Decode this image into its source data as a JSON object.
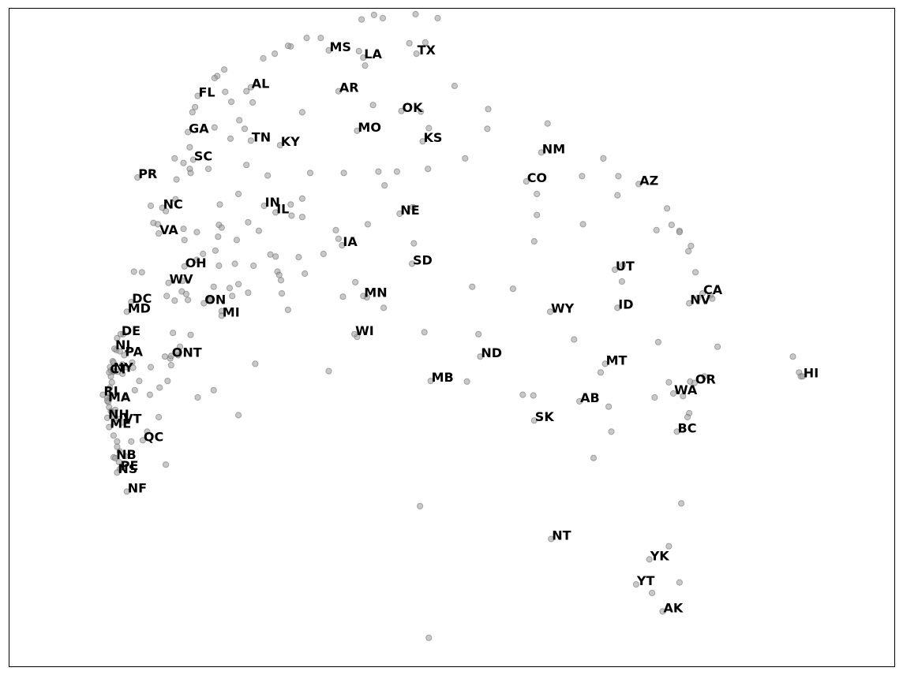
{
  "chart_data": {
    "type": "scatter",
    "title": "",
    "xlabel": "",
    "ylabel": "",
    "xlim": [
      0,
      1
    ],
    "ylim": [
      0,
      1
    ],
    "axes_ticks": false,
    "grid": false,
    "marker_color": "#9a9a9a",
    "label_color": "#000000",
    "labeled_points": [
      {
        "label": "MS",
        "x": 0.361,
        "y": 0.936
      },
      {
        "label": "LA",
        "x": 0.4,
        "y": 0.925
      },
      {
        "label": "TX",
        "x": 0.46,
        "y": 0.931
      },
      {
        "label": "FL",
        "x": 0.213,
        "y": 0.867
      },
      {
        "label": "AL",
        "x": 0.273,
        "y": 0.88
      },
      {
        "label": "AR",
        "x": 0.372,
        "y": 0.874
      },
      {
        "label": "OK",
        "x": 0.443,
        "y": 0.844
      },
      {
        "label": "GA",
        "x": 0.202,
        "y": 0.812
      },
      {
        "label": "MO",
        "x": 0.393,
        "y": 0.814
      },
      {
        "label": "TN",
        "x": 0.273,
        "y": 0.799
      },
      {
        "label": "KY",
        "x": 0.306,
        "y": 0.792
      },
      {
        "label": "KS",
        "x": 0.467,
        "y": 0.798
      },
      {
        "label": "SC",
        "x": 0.208,
        "y": 0.77
      },
      {
        "label": "NM",
        "x": 0.601,
        "y": 0.781
      },
      {
        "label": "PR",
        "x": 0.145,
        "y": 0.743
      },
      {
        "label": "CO",
        "x": 0.584,
        "y": 0.737
      },
      {
        "label": "AZ",
        "x": 0.711,
        "y": 0.733
      },
      {
        "label": "NC",
        "x": 0.173,
        "y": 0.697
      },
      {
        "label": "IN",
        "x": 0.288,
        "y": 0.7
      },
      {
        "label": "IL",
        "x": 0.301,
        "y": 0.69
      },
      {
        "label": "NE",
        "x": 0.441,
        "y": 0.688
      },
      {
        "label": "VA",
        "x": 0.169,
        "y": 0.658
      },
      {
        "label": "IA",
        "x": 0.376,
        "y": 0.64
      },
      {
        "label": "SD",
        "x": 0.455,
        "y": 0.612
      },
      {
        "label": "OH",
        "x": 0.198,
        "y": 0.608
      },
      {
        "label": "UT",
        "x": 0.684,
        "y": 0.603
      },
      {
        "label": "WV",
        "x": 0.18,
        "y": 0.583
      },
      {
        "label": "MN",
        "x": 0.4,
        "y": 0.563
      },
      {
        "label": "CA",
        "x": 0.783,
        "y": 0.567
      },
      {
        "label": "NV",
        "x": 0.768,
        "y": 0.552
      },
      {
        "label": "DC",
        "x": 0.138,
        "y": 0.554
      },
      {
        "label": "ON",
        "x": 0.22,
        "y": 0.552
      },
      {
        "label": "ID",
        "x": 0.687,
        "y": 0.545
      },
      {
        "label": "MD",
        "x": 0.133,
        "y": 0.539
      },
      {
        "label": "WY",
        "x": 0.611,
        "y": 0.539
      },
      {
        "label": "MI",
        "x": 0.24,
        "y": 0.533
      },
      {
        "label": "DE",
        "x": 0.126,
        "y": 0.505
      },
      {
        "label": "WI",
        "x": 0.39,
        "y": 0.505
      },
      {
        "label": "NJ",
        "x": 0.119,
        "y": 0.483
      },
      {
        "label": "ONT",
        "x": 0.183,
        "y": 0.472
      },
      {
        "label": "PA",
        "x": 0.13,
        "y": 0.473
      },
      {
        "label": "ND",
        "x": 0.532,
        "y": 0.471
      },
      {
        "label": "MT",
        "x": 0.673,
        "y": 0.46
      },
      {
        "label": "NY",
        "x": 0.117,
        "y": 0.449
      },
      {
        "label": "CT",
        "x": 0.113,
        "y": 0.447
      },
      {
        "label": "HI",
        "x": 0.896,
        "y": 0.441
      },
      {
        "label": "MB",
        "x": 0.476,
        "y": 0.434
      },
      {
        "label": "OR",
        "x": 0.774,
        "y": 0.431
      },
      {
        "label": "WA",
        "x": 0.75,
        "y": 0.415
      },
      {
        "label": "RI",
        "x": 0.106,
        "y": 0.413
      },
      {
        "label": "MA",
        "x": 0.111,
        "y": 0.404
      },
      {
        "label": "AB",
        "x": 0.644,
        "y": 0.403
      },
      {
        "label": "SK",
        "x": 0.593,
        "y": 0.374
      },
      {
        "label": "NH",
        "x": 0.111,
        "y": 0.378
      },
      {
        "label": "VT",
        "x": 0.128,
        "y": 0.371
      },
      {
        "label": "ME",
        "x": 0.113,
        "y": 0.364
      },
      {
        "label": "BC",
        "x": 0.754,
        "y": 0.357
      },
      {
        "label": "QC",
        "x": 0.151,
        "y": 0.344
      },
      {
        "label": "NB",
        "x": 0.12,
        "y": 0.317
      },
      {
        "label": "PE",
        "x": 0.125,
        "y": 0.3
      },
      {
        "label": "NS",
        "x": 0.122,
        "y": 0.295
      },
      {
        "label": "NF",
        "x": 0.133,
        "y": 0.266
      },
      {
        "label": "NT",
        "x": 0.612,
        "y": 0.194
      },
      {
        "label": "YK",
        "x": 0.723,
        "y": 0.163
      },
      {
        "label": "YT",
        "x": 0.708,
        "y": 0.125
      },
      {
        "label": "AK",
        "x": 0.738,
        "y": 0.084
      }
    ],
    "unlabeled_points": [
      [
        0.398,
        0.983
      ],
      [
        0.412,
        0.99
      ],
      [
        0.422,
        0.985
      ],
      [
        0.459,
        0.991
      ],
      [
        0.484,
        0.985
      ],
      [
        0.47,
        0.948
      ],
      [
        0.452,
        0.947
      ],
      [
        0.402,
        0.913
      ],
      [
        0.395,
        0.935
      ],
      [
        0.352,
        0.955
      ],
      [
        0.336,
        0.955
      ],
      [
        0.318,
        0.942
      ],
      [
        0.315,
        0.943
      ],
      [
        0.3,
        0.931
      ],
      [
        0.287,
        0.924
      ],
      [
        0.243,
        0.907
      ],
      [
        0.235,
        0.897
      ],
      [
        0.232,
        0.894
      ],
      [
        0.244,
        0.873
      ],
      [
        0.268,
        0.874
      ],
      [
        0.251,
        0.858
      ],
      [
        0.275,
        0.857
      ],
      [
        0.21,
        0.85
      ],
      [
        0.207,
        0.842
      ],
      [
        0.331,
        0.842
      ],
      [
        0.411,
        0.853
      ],
      [
        0.465,
        0.843
      ],
      [
        0.503,
        0.882
      ],
      [
        0.541,
        0.847
      ],
      [
        0.608,
        0.825
      ],
      [
        0.54,
        0.817
      ],
      [
        0.474,
        0.818
      ],
      [
        0.26,
        0.83
      ],
      [
        0.232,
        0.819
      ],
      [
        0.266,
        0.817
      ],
      [
        0.25,
        0.802
      ],
      [
        0.204,
        0.789
      ],
      [
        0.515,
        0.772
      ],
      [
        0.671,
        0.772
      ],
      [
        0.688,
        0.745
      ],
      [
        0.187,
        0.772
      ],
      [
        0.197,
        0.765
      ],
      [
        0.204,
        0.756
      ],
      [
        0.225,
        0.756
      ],
      [
        0.268,
        0.762
      ],
      [
        0.34,
        0.75
      ],
      [
        0.378,
        0.75
      ],
      [
        0.417,
        0.752
      ],
      [
        0.438,
        0.752
      ],
      [
        0.473,
        0.756
      ],
      [
        0.647,
        0.745
      ],
      [
        0.189,
        0.74
      ],
      [
        0.205,
        0.75
      ],
      [
        0.292,
        0.746
      ],
      [
        0.424,
        0.731
      ],
      [
        0.596,
        0.718
      ],
      [
        0.687,
        0.716
      ],
      [
        0.188,
        0.71
      ],
      [
        0.259,
        0.718
      ],
      [
        0.238,
        0.702
      ],
      [
        0.16,
        0.7
      ],
      [
        0.318,
        0.702
      ],
      [
        0.331,
        0.711
      ],
      [
        0.456,
        0.698
      ],
      [
        0.177,
        0.692
      ],
      [
        0.319,
        0.685
      ],
      [
        0.331,
        0.683
      ],
      [
        0.596,
        0.686
      ],
      [
        0.743,
        0.696
      ],
      [
        0.748,
        0.671
      ],
      [
        0.163,
        0.674
      ],
      [
        0.168,
        0.672
      ],
      [
        0.237,
        0.671
      ],
      [
        0.24,
        0.667
      ],
      [
        0.27,
        0.675
      ],
      [
        0.197,
        0.665
      ],
      [
        0.212,
        0.66
      ],
      [
        0.282,
        0.662
      ],
      [
        0.369,
        0.663
      ],
      [
        0.405,
        0.672
      ],
      [
        0.648,
        0.672
      ],
      [
        0.731,
        0.663
      ],
      [
        0.757,
        0.662
      ],
      [
        0.757,
        0.66
      ],
      [
        0.198,
        0.648
      ],
      [
        0.257,
        0.648
      ],
      [
        0.236,
        0.653
      ],
      [
        0.372,
        0.65
      ],
      [
        0.457,
        0.643
      ],
      [
        0.593,
        0.646
      ],
      [
        0.77,
        0.639
      ],
      [
        0.233,
        0.632
      ],
      [
        0.295,
        0.626
      ],
      [
        0.301,
        0.623
      ],
      [
        0.327,
        0.622
      ],
      [
        0.355,
        0.627
      ],
      [
        0.767,
        0.631
      ],
      [
        0.219,
        0.627
      ],
      [
        0.212,
        0.618
      ],
      [
        0.237,
        0.609
      ],
      [
        0.255,
        0.612
      ],
      [
        0.276,
        0.609
      ],
      [
        0.303,
        0.6
      ],
      [
        0.334,
        0.597
      ],
      [
        0.141,
        0.6
      ],
      [
        0.15,
        0.599
      ],
      [
        0.693,
        0.61
      ],
      [
        0.775,
        0.599
      ],
      [
        0.305,
        0.595
      ],
      [
        0.307,
        0.587
      ],
      [
        0.391,
        0.584
      ],
      [
        0.523,
        0.577
      ],
      [
        0.569,
        0.574
      ],
      [
        0.692,
        0.585
      ],
      [
        0.196,
        0.586
      ],
      [
        0.231,
        0.577
      ],
      [
        0.249,
        0.575
      ],
      [
        0.259,
        0.581
      ],
      [
        0.27,
        0.568
      ],
      [
        0.195,
        0.57
      ],
      [
        0.2,
        0.566
      ],
      [
        0.308,
        0.567
      ],
      [
        0.377,
        0.562
      ],
      [
        0.404,
        0.561
      ],
      [
        0.252,
        0.563
      ],
      [
        0.178,
        0.563
      ],
      [
        0.202,
        0.557
      ],
      [
        0.225,
        0.556
      ],
      [
        0.227,
        0.557
      ],
      [
        0.187,
        0.556
      ],
      [
        0.315,
        0.542
      ],
      [
        0.423,
        0.545
      ],
      [
        0.778,
        0.56
      ],
      [
        0.792,
        0.564
      ],
      [
        0.794,
        0.559
      ],
      [
        0.24,
        0.54
      ],
      [
        0.185,
        0.507
      ],
      [
        0.205,
        0.504
      ],
      [
        0.469,
        0.508
      ],
      [
        0.53,
        0.505
      ],
      [
        0.393,
        0.501
      ],
      [
        0.638,
        0.497
      ],
      [
        0.733,
        0.493
      ],
      [
        0.8,
        0.486
      ],
      [
        0.122,
        0.499
      ],
      [
        0.129,
        0.505
      ],
      [
        0.121,
        0.481
      ],
      [
        0.125,
        0.479
      ],
      [
        0.193,
        0.486
      ],
      [
        0.191,
        0.473
      ],
      [
        0.176,
        0.471
      ],
      [
        0.182,
        0.468
      ],
      [
        0.189,
        0.478
      ],
      [
        0.183,
        0.458
      ],
      [
        0.885,
        0.471
      ],
      [
        0.117,
        0.464
      ],
      [
        0.128,
        0.459
      ],
      [
        0.118,
        0.462
      ],
      [
        0.139,
        0.462
      ],
      [
        0.114,
        0.455
      ],
      [
        0.115,
        0.45
      ],
      [
        0.118,
        0.448
      ],
      [
        0.123,
        0.448
      ],
      [
        0.128,
        0.445
      ],
      [
        0.132,
        0.455
      ],
      [
        0.14,
        0.454
      ],
      [
        0.16,
        0.455
      ],
      [
        0.278,
        0.46
      ],
      [
        0.361,
        0.449
      ],
      [
        0.892,
        0.447
      ],
      [
        0.894,
        0.441
      ],
      [
        0.668,
        0.447
      ],
      [
        0.115,
        0.441
      ],
      [
        0.147,
        0.434
      ],
      [
        0.116,
        0.432
      ],
      [
        0.179,
        0.434
      ],
      [
        0.517,
        0.433
      ],
      [
        0.745,
        0.432
      ],
      [
        0.785,
        0.441
      ],
      [
        0.769,
        0.433
      ],
      [
        0.114,
        0.424
      ],
      [
        0.17,
        0.424
      ],
      [
        0.159,
        0.413
      ],
      [
        0.115,
        0.413
      ],
      [
        0.231,
        0.42
      ],
      [
        0.58,
        0.413
      ],
      [
        0.592,
        0.412
      ],
      [
        0.729,
        0.409
      ],
      [
        0.761,
        0.411
      ],
      [
        0.142,
        0.42
      ],
      [
        0.114,
        0.409
      ],
      [
        0.111,
        0.408
      ],
      [
        0.131,
        0.409
      ],
      [
        0.112,
        0.402
      ],
      [
        0.213,
        0.409
      ],
      [
        0.677,
        0.395
      ],
      [
        0.169,
        0.379
      ],
      [
        0.259,
        0.382
      ],
      [
        0.113,
        0.394
      ],
      [
        0.115,
        0.388
      ],
      [
        0.117,
        0.386
      ],
      [
        0.12,
        0.39
      ],
      [
        0.119,
        0.381
      ],
      [
        0.124,
        0.376
      ],
      [
        0.768,
        0.385
      ],
      [
        0.766,
        0.379
      ],
      [
        0.12,
        0.371
      ],
      [
        0.156,
        0.357
      ],
      [
        0.68,
        0.357
      ],
      [
        0.118,
        0.351
      ],
      [
        0.138,
        0.342
      ],
      [
        0.122,
        0.342
      ],
      [
        0.122,
        0.334
      ],
      [
        0.125,
        0.327
      ],
      [
        0.124,
        0.311
      ],
      [
        0.118,
        0.318
      ],
      [
        0.131,
        0.32
      ],
      [
        0.177,
        0.307
      ],
      [
        0.66,
        0.317
      ],
      [
        0.127,
        0.302
      ],
      [
        0.464,
        0.244
      ],
      [
        0.759,
        0.248
      ],
      [
        0.745,
        0.183
      ],
      [
        0.726,
        0.112
      ],
      [
        0.757,
        0.128
      ],
      [
        0.474,
        0.044
      ]
    ]
  }
}
